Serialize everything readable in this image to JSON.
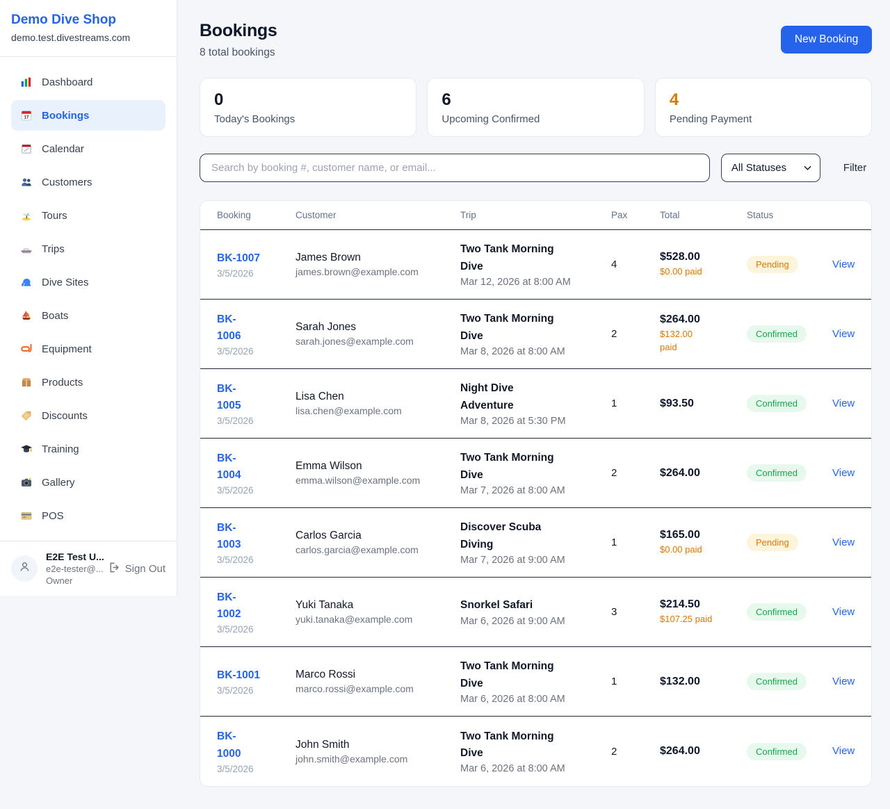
{
  "sidebar": {
    "brand": {
      "name": "Demo Dive Shop",
      "domain": "demo.test.divestreams.com"
    },
    "items": [
      {
        "label": "Dashboard",
        "icon": "bar-chart-icon",
        "active": false
      },
      {
        "label": "Bookings",
        "icon": "calendar-date-icon",
        "active": true
      },
      {
        "label": "Calendar",
        "icon": "calendar-pad-icon",
        "active": false
      },
      {
        "label": "Customers",
        "icon": "users-icon",
        "active": false
      },
      {
        "label": "Tours",
        "icon": "island-icon",
        "active": false
      },
      {
        "label": "Trips",
        "icon": "speedboat-icon",
        "active": false
      },
      {
        "label": "Dive Sites",
        "icon": "wave-icon",
        "active": false
      },
      {
        "label": "Boats",
        "icon": "sailboat-icon",
        "active": false
      },
      {
        "label": "Equipment",
        "icon": "diving-mask-icon",
        "active": false
      },
      {
        "label": "Products",
        "icon": "package-icon",
        "active": false
      },
      {
        "label": "Discounts",
        "icon": "tag-icon",
        "active": false
      },
      {
        "label": "Training",
        "icon": "graduation-cap-icon",
        "active": false
      },
      {
        "label": "Gallery",
        "icon": "camera-icon",
        "active": false
      },
      {
        "label": "POS",
        "icon": "credit-card-icon",
        "active": false
      }
    ],
    "user": {
      "name": "E2E Test U...",
      "email": "e2e-tester@...",
      "role": "Owner",
      "sign_out_label": "Sign Out"
    }
  },
  "header": {
    "title": "Bookings",
    "subtitle": "8 total bookings",
    "new_booking_label": "New Booking"
  },
  "stats": [
    {
      "value": "0",
      "label": "Today's Bookings",
      "value_color": "#0f172a"
    },
    {
      "value": "6",
      "label": "Upcoming Confirmed",
      "value_color": "#0f172a"
    },
    {
      "value": "4",
      "label": "Pending Payment",
      "value_color": "#d97706"
    }
  ],
  "filters": {
    "search_placeholder": "Search by booking #, customer name, or email...",
    "status_selected": "All Statuses",
    "filter_label": "Filter"
  },
  "table": {
    "columns": [
      "Booking",
      "Customer",
      "Trip",
      "Pax",
      "Total",
      "Status"
    ],
    "view_label": "View",
    "rows": [
      {
        "id": "BK-1007",
        "id_wrapped": false,
        "date": "3/5/2026",
        "customer": "James Brown",
        "email": "james.brown@example.com",
        "trip": "Two Tank Morning Dive",
        "trip_datetime": "Mar 12, 2026 at 8:00 AM",
        "pax": "4",
        "total": "$528.00",
        "paid": "$0.00 paid",
        "paid_wrapped": false,
        "status": "Pending"
      },
      {
        "id": "BK-1006",
        "id_wrapped": true,
        "date": "3/5/2026",
        "customer": "Sarah Jones",
        "email": "sarah.jones@example.com",
        "trip": "Two Tank Morning Dive",
        "trip_datetime": "Mar 8, 2026 at 8:00 AM",
        "pax": "2",
        "total": "$264.00",
        "paid": "$132.00 paid",
        "paid_wrapped": true,
        "status": "Confirmed"
      },
      {
        "id": "BK-1005",
        "id_wrapped": true,
        "date": "3/5/2026",
        "customer": "Lisa Chen",
        "email": "lisa.chen@example.com",
        "trip": "Night Dive Adventure",
        "trip_datetime": "Mar 8, 2026 at 5:30 PM",
        "pax": "1",
        "total": "$93.50",
        "paid": null,
        "paid_wrapped": false,
        "status": "Confirmed"
      },
      {
        "id": "BK-1004",
        "id_wrapped": true,
        "date": "3/5/2026",
        "customer": "Emma Wilson",
        "email": "emma.wilson@example.com",
        "trip": "Two Tank Morning Dive",
        "trip_datetime": "Mar 7, 2026 at 8:00 AM",
        "pax": "2",
        "total": "$264.00",
        "paid": null,
        "paid_wrapped": false,
        "status": "Confirmed"
      },
      {
        "id": "BK-1003",
        "id_wrapped": true,
        "date": "3/5/2026",
        "customer": "Carlos Garcia",
        "email": "carlos.garcia@example.com",
        "trip": "Discover Scuba Diving",
        "trip_datetime": "Mar 7, 2026 at 9:00 AM",
        "pax": "1",
        "total": "$165.00",
        "paid": "$0.00 paid",
        "paid_wrapped": false,
        "status": "Pending"
      },
      {
        "id": "BK-1002",
        "id_wrapped": true,
        "date": "3/5/2026",
        "customer": "Yuki Tanaka",
        "email": "yuki.tanaka@example.com",
        "trip": "Snorkel Safari",
        "trip_datetime": "Mar 6, 2026 at 9:00 AM",
        "pax": "3",
        "total": "$214.50",
        "paid": "$107.25 paid",
        "paid_wrapped": false,
        "status": "Confirmed"
      },
      {
        "id": "BK-1001",
        "id_wrapped": false,
        "date": "3/5/2026",
        "customer": "Marco Rossi",
        "email": "marco.rossi@example.com",
        "trip": "Two Tank Morning Dive",
        "trip_datetime": "Mar 6, 2026 at 8:00 AM",
        "pax": "1",
        "total": "$132.00",
        "paid": null,
        "paid_wrapped": false,
        "status": "Confirmed"
      },
      {
        "id": "BK-1000",
        "id_wrapped": true,
        "date": "3/5/2026",
        "customer": "John Smith",
        "email": "john.smith@example.com",
        "trip": "Two Tank Morning Dive",
        "trip_datetime": "Mar 6, 2026 at 8:00 AM",
        "pax": "2",
        "total": "$264.00",
        "paid": null,
        "paid_wrapped": false,
        "status": "Confirmed"
      }
    ]
  },
  "colors": {
    "accent": "#2563eb",
    "pending_text": "#d97706",
    "pending_bg": "#fcf4db",
    "confirmed_text": "#16a34a",
    "confirmed_bg": "#e7f8ed",
    "paid_orange": "#d97706",
    "sidebar_active_bg": "#e9f1fd"
  }
}
